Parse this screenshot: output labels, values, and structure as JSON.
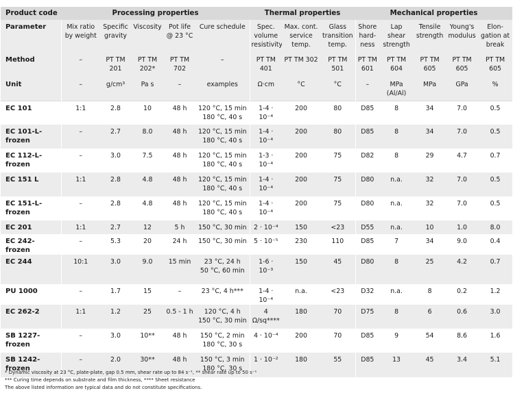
{
  "groups": {
    "product_code": "Product code",
    "processing": "Processing properties",
    "thermal": "Thermal properties",
    "mechanical": "Mechanical properties"
  },
  "header_rows": [
    {
      "label": "Parameter",
      "cells": [
        "Mix ratio by weight",
        "Specific gravity",
        "Viscosity",
        "Pot life @ 23 °C",
        "Cure schedule",
        "Spec. volume resistivity",
        "Max. cont. service temp.",
        "Glass transition temp.",
        "Shore hard-ness",
        "Lap shear strength",
        "Tensile strength",
        "Young's modulus",
        "Elon-gation at break"
      ]
    },
    {
      "label": "Method",
      "cells": [
        "–",
        "PT TM 201",
        "PT TM 202*",
        "PT TM 702",
        "–",
        "PT TM 401",
        "PT TM 302",
        "PT TM 501",
        "PT TM 601",
        "PT TM 604",
        "PT TM 605",
        "PT TM 605",
        "PT TM 605"
      ]
    },
    {
      "label": "Unit",
      "cells": [
        "–",
        "g/cm³",
        "Pa s",
        "–",
        "examples",
        "Ω·cm",
        "°C",
        "°C",
        "–",
        "MPa (Al/Al)",
        "MPa",
        "GPa",
        "%"
      ]
    }
  ],
  "rows": [
    {
      "code": "EC 101",
      "mix": "1:1",
      "sg": "2.8",
      "visc": "10",
      "pot": "48 h",
      "cure": [
        "120 °C, 15 min",
        "180 °C, 40 s"
      ],
      "res": "1-4 · 10⁻⁴",
      "temp": "200",
      "tg": "80",
      "shore": "D85",
      "lap": "8",
      "tens": "34",
      "young": "7.0",
      "elong": "0.5"
    },
    {
      "code": "EC 101-L-frozen",
      "mix": "–",
      "sg": "2.7",
      "visc": "8.0",
      "pot": "48 h",
      "cure": [
        "120 °C, 15 min",
        "180 °C, 40 s"
      ],
      "res": "1-4 · 10⁻⁴",
      "temp": "200",
      "tg": "80",
      "shore": "D85",
      "lap": "8",
      "tens": "34",
      "young": "7.0",
      "elong": "0.5"
    },
    {
      "code": "EC 112-L-frozen",
      "mix": "–",
      "sg": "3.0",
      "visc": "7.5",
      "pot": "48 h",
      "cure": [
        "120 °C, 15 min",
        "180 °C, 40 s"
      ],
      "res": "1-3 · 10⁻⁴",
      "temp": "200",
      "tg": "75",
      "shore": "D82",
      "lap": "8",
      "tens": "29",
      "young": "4.7",
      "elong": "0.7"
    },
    {
      "code": "EC 151 L",
      "mix": "1:1",
      "sg": "2.8",
      "visc": "4.8",
      "pot": "48 h",
      "cure": [
        "120 °C, 15 min",
        "180 °C, 40 s"
      ],
      "res": "1-4 · 10⁻⁴",
      "temp": "200",
      "tg": "75",
      "shore": "D80",
      "lap": "n.a.",
      "tens": "32",
      "young": "7.0",
      "elong": "0.5"
    },
    {
      "code": "EC 151-L-frozen",
      "mix": "–",
      "sg": "2.8",
      "visc": "4.8",
      "pot": "48 h",
      "cure": [
        "120 °C, 15 min",
        "180 °C, 40 s"
      ],
      "res": "1-4 · 10⁻⁴",
      "temp": "200",
      "tg": "75",
      "shore": "D80",
      "lap": "n.a.",
      "tens": "32",
      "young": "7.0",
      "elong": "0.5"
    },
    {
      "code": "EC 201",
      "mix": "1:1",
      "sg": "2.7",
      "visc": "12",
      "pot": "5 h",
      "cure": [
        "150 °C, 30 min"
      ],
      "res": "2 · 10⁻⁴",
      "temp": "150",
      "tg": "<23",
      "shore": "D55",
      "lap": "n.a.",
      "tens": "10",
      "young": "1.0",
      "elong": "8.0"
    },
    {
      "code": "EC 242-frozen",
      "mix": "–",
      "sg": "5.3",
      "visc": "20",
      "pot": "24 h",
      "cure": [
        "150 °C, 30 min"
      ],
      "res": "5 · 10⁻⁵",
      "temp": "230",
      "tg": "110",
      "shore": "D85",
      "lap": "7",
      "tens": "34",
      "young": "9.0",
      "elong": "0.4"
    },
    {
      "code": "EC 244",
      "mix": "10:1",
      "sg": "3.0",
      "visc": "9.0",
      "pot": "15 min",
      "cure": [
        "23 °C, 24 h",
        "50 °C, 60 min"
      ],
      "res": "1-6 · 10⁻³",
      "temp": "150",
      "tg": "45",
      "shore": "D80",
      "lap": "8",
      "tens": "25",
      "young": "4.2",
      "elong": "0.7"
    },
    {
      "code": "PU 1000",
      "mix": "–",
      "sg": "1.7",
      "visc": "15",
      "pot": "–",
      "cure": [
        "23 °C, 4 h***"
      ],
      "res": "1-4 · 10⁻⁴",
      "temp": "n.a.",
      "tg": "<23",
      "shore": "D32",
      "lap": "n.a.",
      "tens": "8",
      "young": "0.2",
      "elong": "1.2"
    },
    {
      "code": "EC 262-2",
      "mix": "1:1",
      "sg": "1.2",
      "visc": "25",
      "pot": "0.5 - 1 h",
      "cure": [
        "120 °C, 4 h",
        "150 °C, 30 min"
      ],
      "res": "4 Ω/sq****",
      "temp": "180",
      "tg": "70",
      "shore": "D75",
      "lap": "8",
      "tens": "6",
      "young": "0.6",
      "elong": "3.0"
    },
    {
      "code": "SB 1227-frozen",
      "mix": "–",
      "sg": "3.0",
      "visc": "10**",
      "pot": "48 h",
      "cure": [
        "150 °C, 2 min",
        "180 °C, 30 s"
      ],
      "res": "4 · 10⁻⁴",
      "temp": "200",
      "tg": "70",
      "shore": "D85",
      "lap": "9",
      "tens": "54",
      "young": "8.6",
      "elong": "1.6"
    },
    {
      "code": "SB 1242-frozen",
      "mix": "–",
      "sg": "2.0",
      "visc": "30**",
      "pot": "48 h",
      "cure": [
        "150 °C, 3 min",
        "180 °C, 30 s"
      ],
      "res": "1 · 10⁻²",
      "temp": "180",
      "tg": "55",
      "shore": "D85",
      "lap": "13",
      "tens": "45",
      "young": "3.4",
      "elong": "5.1"
    }
  ],
  "footnotes": [
    "* Dynamic viscosity at 23 °C, plate-plate, gap 0.5 mm, shear rate up to 84 s⁻¹, ** shear rate up to 50 s⁻¹",
    "*** Curing time depends on substrate and film thickness, **** Sheet resistance",
    "The above listed information are typical data and do not constitute specifications."
  ]
}
